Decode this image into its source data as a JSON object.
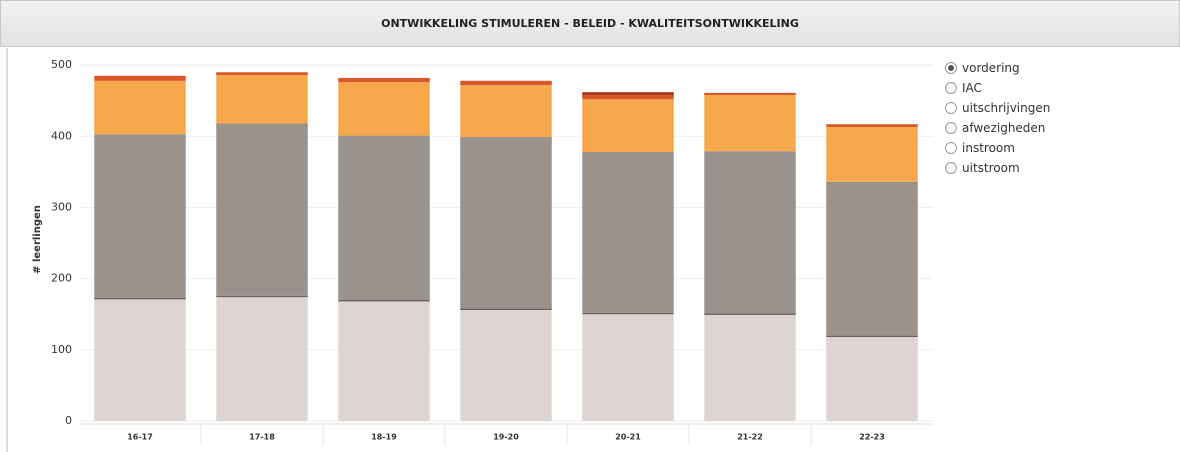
{
  "header": {
    "title": "ONTWIKKELING STIMULEREN - BELEID - KWALITEITSONTWIKKELING"
  },
  "options": {
    "items": [
      "vordering",
      "IAC",
      "uitschrijvingen",
      "afwezigheden",
      "instroom",
      "uitstroom"
    ],
    "selected": 0
  },
  "chart_data": {
    "type": "stacked_bar",
    "y_label": "# leerlingen",
    "categories": [
      "16-17",
      "17-18",
      "18-19",
      "19-20",
      "20-21",
      "21-22",
      "22-23"
    ],
    "series": [
      {
        "color": "#ddd5d2",
        "values": [
          171,
          174,
          168,
          156,
          150,
          149,
          118
        ]
      },
      {
        "color": "#6e605c",
        "values": [
          2,
          2,
          2,
          2,
          2,
          2,
          2
        ]
      },
      {
        "color": "#9a928d",
        "values": [
          230,
          242,
          231,
          241,
          226,
          228,
          216
        ]
      },
      {
        "color": "#f7a84c",
        "values": [
          75,
          68,
          75,
          73,
          74,
          79,
          77
        ]
      },
      {
        "color": "#d9582b",
        "values": [
          7,
          4,
          6,
          6,
          6,
          3,
          4
        ]
      },
      {
        "color": "#a8361b",
        "values": [
          0,
          0,
          0,
          0,
          4,
          0,
          0
        ]
      }
    ],
    "ylim": [
      0,
      510
    ],
    "yticks": [
      0,
      100,
      200,
      300,
      400,
      500
    ],
    "grid": true
  }
}
